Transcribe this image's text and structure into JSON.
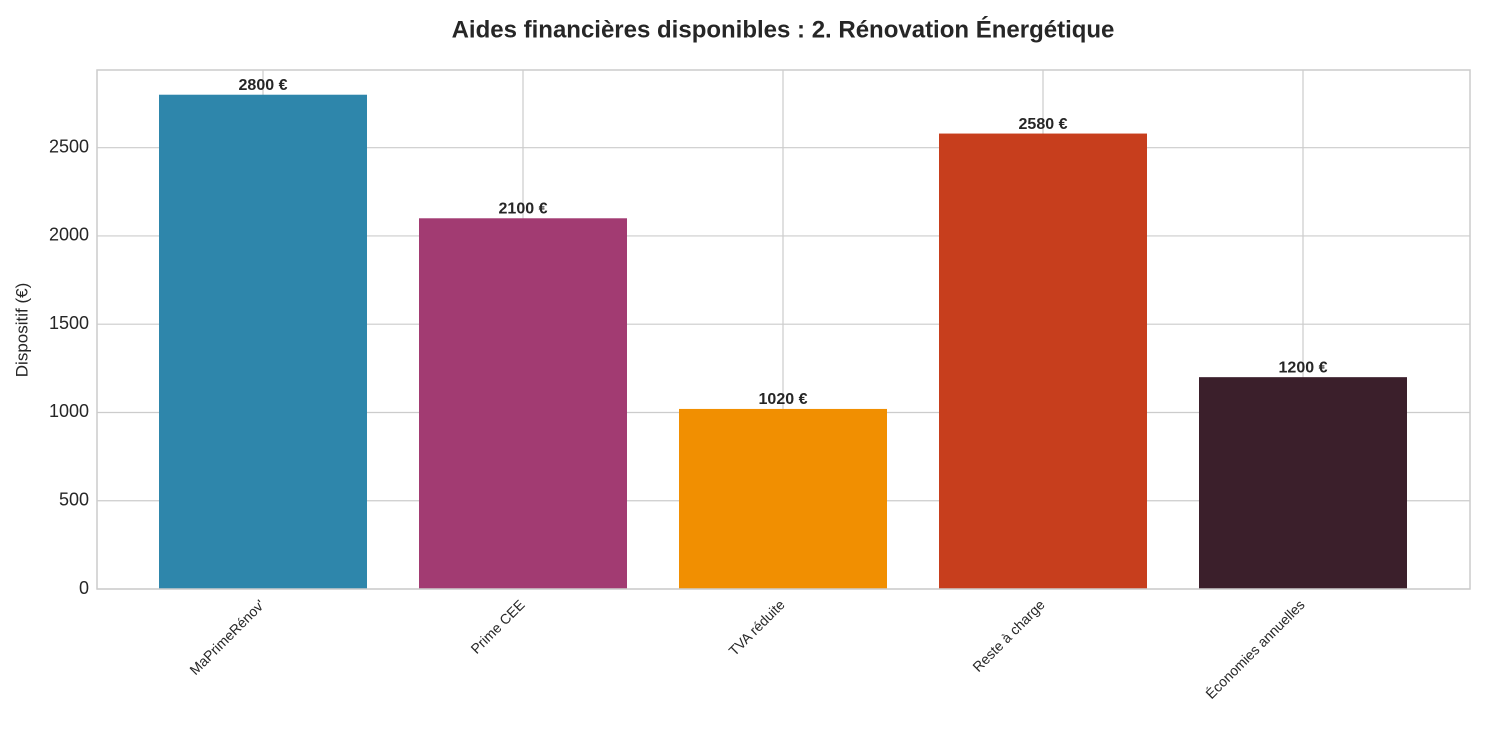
{
  "chart_data": {
    "type": "bar",
    "title": "Aides financières disponibles : 2. Rénovation Énergétique",
    "y_label": "Dispositif (€)",
    "categories": [
      "MaPrimeRénov'",
      "Prime CEE",
      "TVA réduite",
      "Reste à charge",
      "Économies annuelles"
    ],
    "values": [
      2800,
      2100,
      1020,
      2580,
      1200
    ],
    "value_labels": [
      "2800 €",
      "2100 €",
      "1020 €",
      "2580 €",
      "1200 €"
    ],
    "colors": [
      "#2e86ab",
      "#a23b72",
      "#f18f01",
      "#c73e1d",
      "#3b1f2b"
    ],
    "ylim": [
      0,
      2940
    ],
    "yticks": [
      0,
      500,
      1000,
      1500,
      2000,
      2500
    ],
    "grid": true
  }
}
